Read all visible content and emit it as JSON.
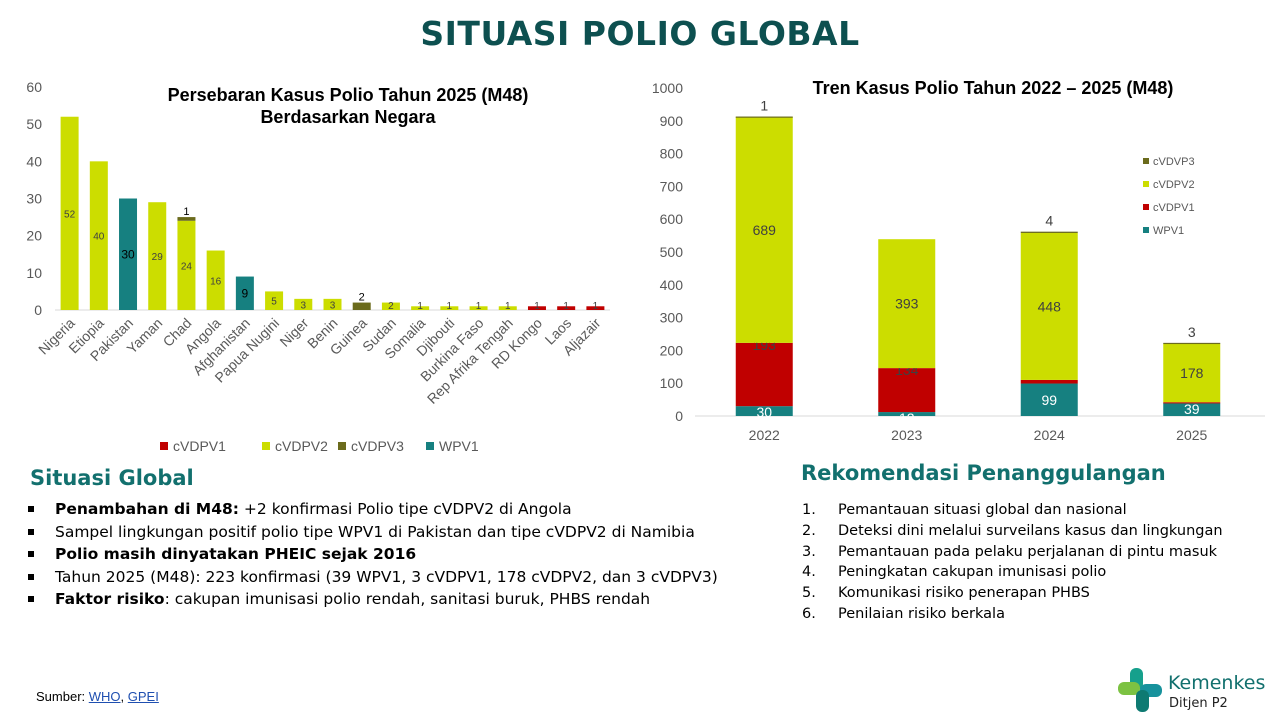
{
  "title": "SITUASI POLIO GLOBAL",
  "colors": {
    "cVDPV1": "#c00000",
    "cVDPV2": "#ccdd00",
    "cVDPV3": "#6b6b1c",
    "WPV1": "#168080",
    "title": "#0d5050",
    "section": "#12706e"
  },
  "chart_data": [
    {
      "type": "bar",
      "title_line1": "Persebaran Kasus Polio Tahun 2025 (M48)",
      "title_line2": "Berdasarkan Negara",
      "ylim": [
        0,
        60
      ],
      "yticks": [
        0,
        10,
        20,
        30,
        40,
        50,
        60
      ],
      "stacked": true,
      "legend_position": "bottom",
      "categories": [
        "Nigeria",
        "Etiopia",
        "Pakistan",
        "Yaman",
        "Chad",
        "Angola",
        "Afghanistan",
        "Papua Nugini",
        "Niger",
        "Benin",
        "Guinea",
        "Sudan",
        "Somalia",
        "Djibouti",
        "Burkina Faso",
        "Rep Afrika Tengah",
        "RD Kongo",
        "Laos",
        "Aljazair"
      ],
      "series": [
        {
          "name": "cVDPV1",
          "values": [
            0,
            0,
            0,
            0,
            0,
            0,
            0,
            0,
            0,
            0,
            0,
            0,
            0,
            0,
            0,
            0,
            1,
            1,
            1
          ]
        },
        {
          "name": "cVDPV2",
          "values": [
            52,
            40,
            0,
            29,
            24,
            16,
            0,
            5,
            3,
            3,
            0,
            2,
            1,
            1,
            1,
            1,
            0,
            0,
            0
          ]
        },
        {
          "name": "cVDPV3",
          "values": [
            0,
            0,
            0,
            0,
            1,
            0,
            0,
            0,
            0,
            0,
            2,
            0,
            0,
            0,
            0,
            0,
            0,
            0,
            0
          ]
        },
        {
          "name": "WPV1",
          "values": [
            0,
            0,
            30,
            0,
            0,
            0,
            9,
            0,
            0,
            0,
            0,
            0,
            0,
            0,
            0,
            0,
            0,
            0,
            0
          ]
        }
      ],
      "legend": [
        "cVDPV1",
        "cVDPV2",
        "cVDPV3",
        "WPV1"
      ]
    },
    {
      "type": "bar",
      "title": "Tren Kasus Polio Tahun 2022 – 2025 (M48)",
      "ylim": [
        0,
        1000
      ],
      "yticks": [
        0,
        100,
        200,
        300,
        400,
        500,
        600,
        700,
        800,
        900,
        1000
      ],
      "stacked": true,
      "legend_position": "right",
      "categories": [
        "2022",
        "2023",
        "2024",
        "2025"
      ],
      "series": [
        {
          "name": "WPV1",
          "values": [
            30,
            12,
            99,
            39
          ]
        },
        {
          "name": "cVDPV1",
          "values": [
            193,
            134,
            11,
            3
          ]
        },
        {
          "name": "cVDPV2",
          "values": [
            689,
            393,
            448,
            178
          ]
        },
        {
          "name": "cVDVP3",
          "values": [
            1,
            0,
            4,
            3
          ]
        }
      ],
      "legend": [
        "cVDVP3",
        "cVDPV2",
        "cVDPV1",
        "WPV1"
      ]
    }
  ],
  "situasi": {
    "heading": "Situasi Global",
    "items": [
      {
        "bold": "Penambahan di M48:",
        "text": " +2 konfirmasi Polio tipe cVDPV2 di Angola"
      },
      {
        "bold": "",
        "text": "Sampel lingkungan positif polio tipe WPV1 di Pakistan dan tipe cVDPV2 di Namibia"
      },
      {
        "bold": "Polio masih dinyatakan PHEIC sejak 2016",
        "text": ""
      },
      {
        "bold": "",
        "text": "Tahun 2025 (M48): 223 konfirmasi (39 WPV1, 3 cVDPV1, 178 cVDPV2, dan 3 cVDPV3)"
      },
      {
        "bold": "Faktor risiko",
        "text": ": cakupan imunisasi polio rendah, sanitasi buruk, PHBS rendah"
      }
    ]
  },
  "rekomendasi": {
    "heading": "Rekomendasi Penanggulangan",
    "items": [
      {
        "num": "1.",
        "text": "Pemantauan situasi global dan nasional"
      },
      {
        "num": "2.",
        "text": "Deteksi dini melalui surveilans kasus dan lingkungan"
      },
      {
        "num": "3.",
        "text": "Pemantauan pada pelaku perjalanan di pintu masuk"
      },
      {
        "num": "4.",
        "text": "Peningkatan cakupan imunisasi polio"
      },
      {
        "num": "5.",
        "text": "Komunikasi risiko penerapan PHBS"
      },
      {
        "num": "6.",
        "text": "Penilaian risiko berkala"
      }
    ]
  },
  "source": {
    "label": "Sumber: ",
    "link1": "WHO",
    "separator": ", ",
    "link2": "GPEI"
  },
  "logo": {
    "name": "Kemenkes",
    "sub": "Ditjen P2"
  }
}
